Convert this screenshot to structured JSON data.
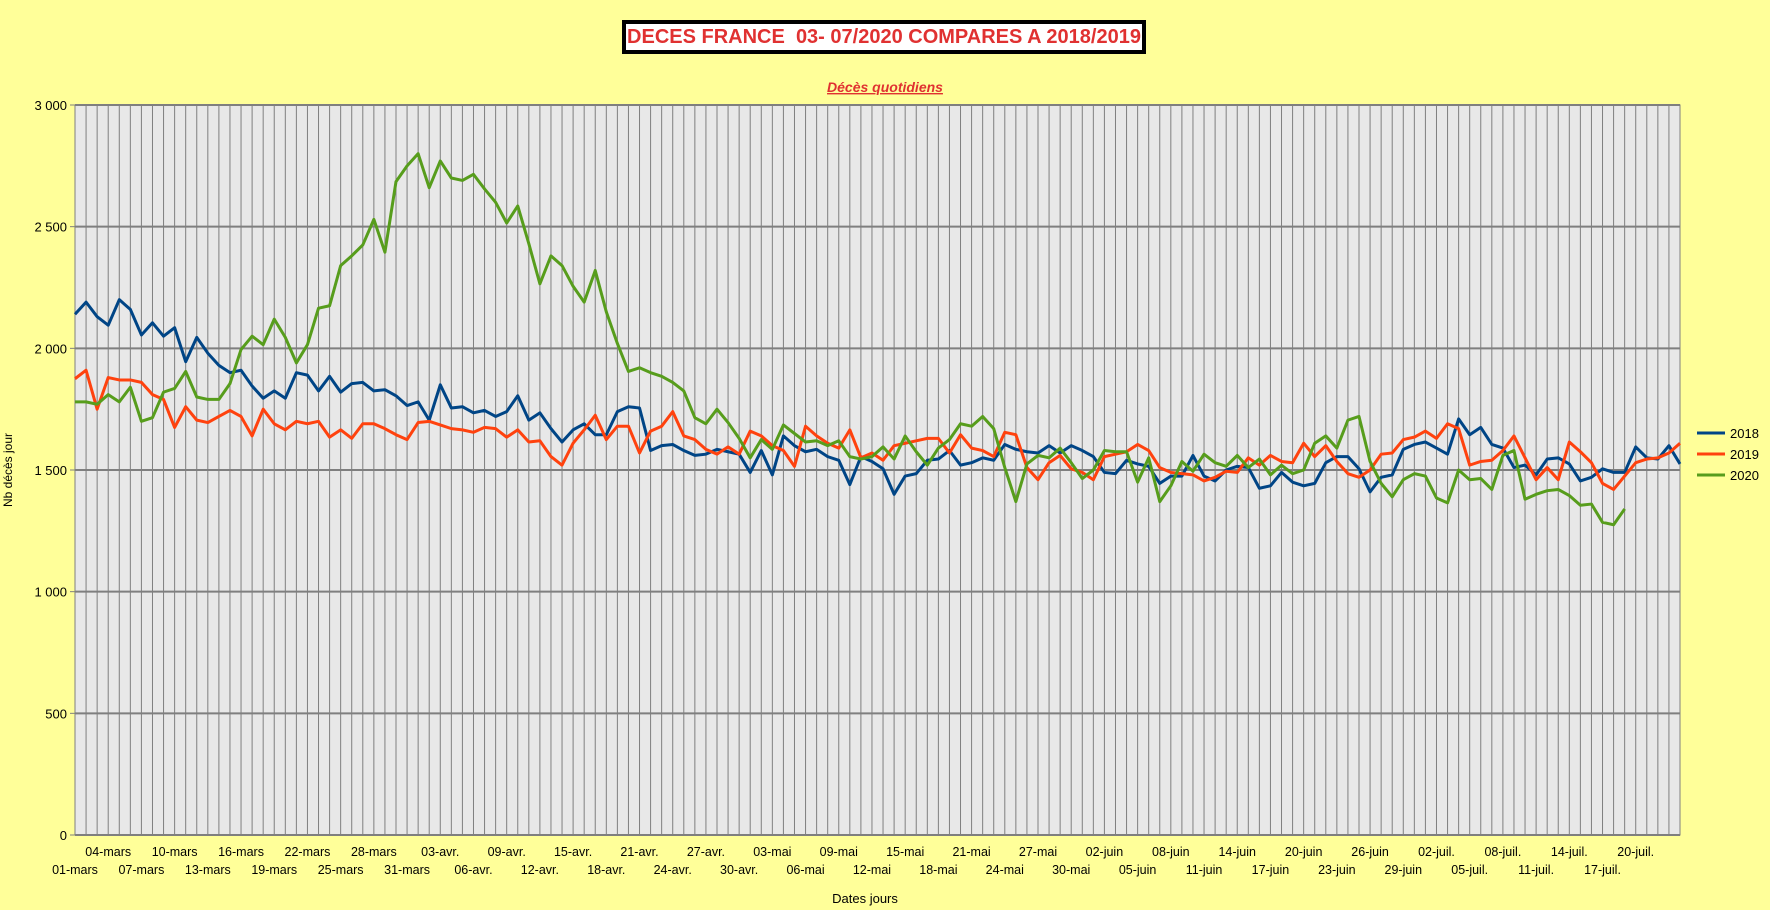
{
  "chart_data": {
    "type": "line",
    "title": "DECES FRANCE  03- 07/2020 COMPARES A 2018/2019",
    "subtitle": "Décès quotidiens",
    "xlabel": "Dates jours",
    "ylabel": "Nb décès jour",
    "ylim": [
      0,
      3000
    ],
    "yticks": [
      0,
      500,
      1000,
      1500,
      2000,
      2500,
      3000
    ],
    "ytick_labels": [
      "0",
      "500",
      "1 000",
      "1 500",
      "2 000",
      "2 500",
      "3 000"
    ],
    "grid": true,
    "legend_position": "right",
    "x_start": "01-mars",
    "x_end": "20-juil.",
    "x_tick_labels": [
      "01-mars",
      "04-mars",
      "07-mars",
      "10-mars",
      "13-mars",
      "16-mars",
      "19-mars",
      "22-mars",
      "25-mars",
      "28-mars",
      "31-mars",
      "03-avr.",
      "06-avr.",
      "09-avr.",
      "12-avr.",
      "15-avr.",
      "18-avr.",
      "21-avr.",
      "24-avr.",
      "27-avr.",
      "30-avr.",
      "03-mai",
      "06-mai",
      "09-mai",
      "12-mai",
      "15-mai",
      "18-mai",
      "21-mai",
      "24-mai",
      "27-mai",
      "30-mai",
      "02-juin",
      "05-juin",
      "08-juin",
      "11-juin",
      "14-juin",
      "17-juin",
      "20-juin",
      "23-juin",
      "26-juin",
      "29-juin",
      "02-juil.",
      "05-juil.",
      "08-juil.",
      "11-juil.",
      "14-juil.",
      "17-juil.",
      "20-juil."
    ],
    "series": [
      {
        "name": "2018",
        "color": "#004586",
        "values": [
          2140,
          2190,
          2130,
          2095,
          2200,
          2160,
          2055,
          2105,
          2050,
          2085,
          1945,
          2045,
          1980,
          1930,
          1900,
          1910,
          1845,
          1795,
          1825,
          1795,
          1900,
          1890,
          1825,
          1885,
          1820,
          1855,
          1860,
          1825,
          1830,
          1805,
          1765,
          1780,
          1705,
          1850,
          1755,
          1760,
          1735,
          1745,
          1720,
          1740,
          1805,
          1705,
          1735,
          1670,
          1615,
          1665,
          1690,
          1645,
          1645,
          1740,
          1760,
          1755,
          1580,
          1600,
          1605,
          1580,
          1560,
          1565,
          1585,
          1575,
          1565,
          1490,
          1580,
          1480,
          1640,
          1600,
          1575,
          1585,
          1555,
          1540,
          1440,
          1555,
          1535,
          1505,
          1400,
          1475,
          1485,
          1540,
          1545,
          1580,
          1520,
          1530,
          1550,
          1540,
          1605,
          1585,
          1575,
          1570,
          1600,
          1570,
          1600,
          1580,
          1555,
          1490,
          1485,
          1540,
          1525,
          1515,
          1445,
          1475,
          1475,
          1560,
          1475,
          1455,
          1500,
          1515,
          1510,
          1425,
          1435,
          1490,
          1450,
          1435,
          1445,
          1530,
          1555,
          1555,
          1505,
          1410,
          1470,
          1480,
          1585,
          1605,
          1615,
          1590,
          1565,
          1710,
          1645,
          1675,
          1605,
          1590,
          1510,
          1520,
          1480,
          1545,
          1550,
          1525,
          1455,
          1470,
          1505,
          1490,
          1490,
          1595,
          1550,
          1545,
          1600,
          1525
        ]
      },
      {
        "name": "2019",
        "color": "#ff420e",
        "values": [
          1875,
          1910,
          1750,
          1880,
          1870,
          1870,
          1860,
          1810,
          1790,
          1675,
          1760,
          1705,
          1695,
          1720,
          1745,
          1720,
          1640,
          1750,
          1690,
          1665,
          1700,
          1690,
          1700,
          1635,
          1665,
          1630,
          1690,
          1690,
          1670,
          1645,
          1625,
          1695,
          1700,
          1685,
          1670,
          1665,
          1655,
          1675,
          1670,
          1635,
          1665,
          1615,
          1620,
          1555,
          1520,
          1610,
          1665,
          1725,
          1625,
          1680,
          1680,
          1570,
          1660,
          1680,
          1740,
          1640,
          1625,
          1585,
          1565,
          1595,
          1565,
          1660,
          1640,
          1600,
          1580,
          1515,
          1680,
          1640,
          1610,
          1590,
          1665,
          1550,
          1570,
          1540,
          1600,
          1610,
          1620,
          1630,
          1630,
          1570,
          1645,
          1590,
          1580,
          1555,
          1655,
          1645,
          1510,
          1460,
          1530,
          1560,
          1505,
          1490,
          1460,
          1555,
          1565,
          1575,
          1605,
          1580,
          1510,
          1490,
          1485,
          1480,
          1455,
          1470,
          1495,
          1490,
          1550,
          1520,
          1560,
          1535,
          1530,
          1610,
          1555,
          1600,
          1535,
          1485,
          1470,
          1500,
          1565,
          1570,
          1625,
          1635,
          1660,
          1630,
          1690,
          1670,
          1520,
          1535,
          1540,
          1580,
          1640,
          1550,
          1460,
          1510,
          1460,
          1615,
          1575,
          1530,
          1445,
          1420,
          1475,
          1530,
          1545,
          1550,
          1570,
          1610
        ]
      },
      {
        "name": "2020",
        "color": "#579d1c",
        "values": [
          1780,
          1780,
          1770,
          1810,
          1780,
          1840,
          1700,
          1715,
          1820,
          1835,
          1905,
          1800,
          1790,
          1790,
          1855,
          1995,
          2050,
          2015,
          2120,
          2045,
          1940,
          2015,
          2165,
          2175,
          2340,
          2380,
          2425,
          2530,
          2395,
          2685,
          2750,
          2800,
          2660,
          2770,
          2700,
          2690,
          2715,
          2655,
          2600,
          2515,
          2585,
          2430,
          2265,
          2380,
          2340,
          2255,
          2190,
          2320,
          2150,
          2020,
          1905,
          1920,
          1900,
          1885,
          1860,
          1825,
          1715,
          1690,
          1750,
          1695,
          1630,
          1550,
          1625,
          1585,
          1685,
          1650,
          1615,
          1620,
          1600,
          1620,
          1555,
          1545,
          1555,
          1595,
          1545,
          1640,
          1575,
          1520,
          1590,
          1625,
          1690,
          1680,
          1720,
          1670,
          1510,
          1370,
          1525,
          1560,
          1550,
          1590,
          1530,
          1465,
          1500,
          1580,
          1575,
          1575,
          1450,
          1550,
          1370,
          1435,
          1535,
          1495,
          1565,
          1530,
          1515,
          1560,
          1510,
          1545,
          1480,
          1520,
          1485,
          1500,
          1610,
          1640,
          1590,
          1705,
          1720,
          1535,
          1445,
          1390,
          1460,
          1485,
          1475,
          1385,
          1365,
          1500,
          1460,
          1465,
          1420,
          1560,
          1580,
          1380,
          1400,
          1415,
          1420,
          1395,
          1355,
          1360,
          1285,
          1275,
          1340
        ]
      }
    ]
  }
}
